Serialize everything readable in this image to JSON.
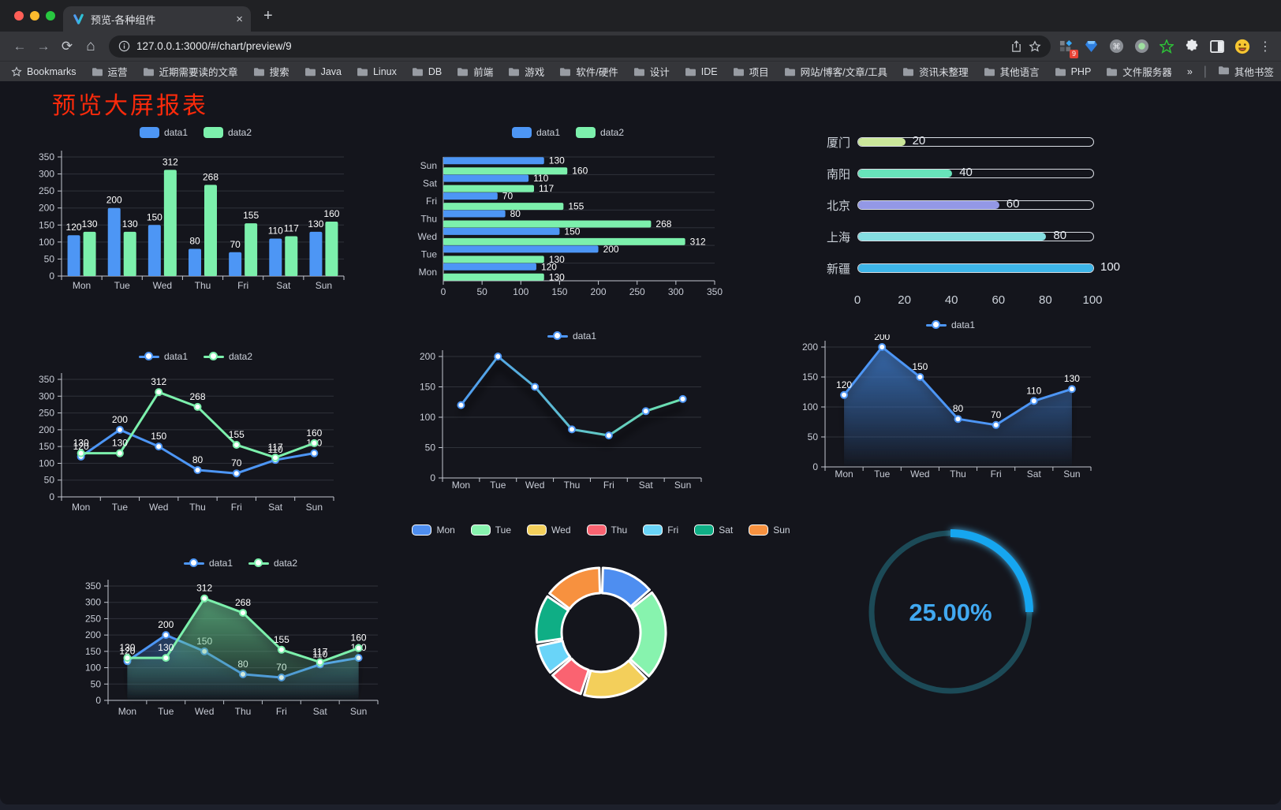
{
  "browser": {
    "traffic_lights": [
      "#ff5f57",
      "#febc2e",
      "#28c840"
    ],
    "tab": {
      "title": "预览-各种组件",
      "close_glyph": "×",
      "new_tab_glyph": "+"
    },
    "address": {
      "url": "127.0.0.1:3000/#/chart/preview/9"
    },
    "nav": {
      "back_glyph": "←",
      "forward_glyph": "→",
      "reload_glyph": "⟳",
      "home_glyph": "⌂"
    },
    "extension_badge": "9",
    "menu_glyph": "⋮",
    "bookmarks_label": "Bookmarks",
    "bookmarks": [
      "运营",
      "近期需要读的文章",
      "搜索",
      "Java",
      "Linux",
      "DB",
      "前端",
      "游戏",
      "软件/硬件",
      "设计",
      "IDE",
      "项目",
      "网站/博客/文章/工具",
      "资讯未整理",
      "其他语言",
      "PHP",
      "文件服务器"
    ],
    "bookmarks_overflow_glyph": "»",
    "other_bookmarks_label": "其他书签"
  },
  "page": {
    "title": "预览大屏报表",
    "title_color": "#fb2a0b",
    "background": "#14151c"
  },
  "theme": {
    "axis_text": "#c8ccd6",
    "axis_line": "#c3c7d0",
    "grid_line": "#2f323a",
    "value_label": "#ffffff"
  },
  "chart_data": [
    {
      "id": "grouped-bar",
      "type": "bar",
      "categories": [
        "Mon",
        "Tue",
        "Wed",
        "Thu",
        "Fri",
        "Sat",
        "Sun"
      ],
      "series": [
        {
          "name": "data1",
          "color": "#4d96f5",
          "values": [
            120,
            200,
            150,
            80,
            70,
            110,
            130
          ]
        },
        {
          "name": "data2",
          "color": "#7cf0ac",
          "values": [
            130,
            130,
            312,
            268,
            155,
            117,
            160
          ]
        }
      ],
      "ylim": [
        0,
        350
      ],
      "ystep": 50,
      "grid": true,
      "legend_position": "top",
      "labels": true
    },
    {
      "id": "horizontal-bar",
      "type": "bar-horizontal",
      "categories_top_to_bottom": [
        "Sun",
        "Sat",
        "Fri",
        "Thu",
        "Wed",
        "Tue",
        "Mon"
      ],
      "series": [
        {
          "name": "data1",
          "color": "#4d96f5",
          "values_mon_to_sun": [
            120,
            200,
            150,
            80,
            70,
            110,
            130
          ]
        },
        {
          "name": "data2",
          "color": "#7cf0ac",
          "values_mon_to_sun": [
            130,
            130,
            312,
            268,
            155,
            117,
            160
          ]
        }
      ],
      "xlim": [
        0,
        350
      ],
      "xstep": 50,
      "legend_position": "top",
      "labels": true
    },
    {
      "id": "progress-bars",
      "type": "progress",
      "items": [
        {
          "label": "厦门",
          "value": 20,
          "color": "#cbe79a"
        },
        {
          "label": "南阳",
          "value": 40,
          "color": "#67e3ba"
        },
        {
          "label": "北京",
          "value": 60,
          "color": "#9398e6"
        },
        {
          "label": "上海",
          "value": 80,
          "color": "#85dee1"
        },
        {
          "label": "新疆",
          "value": 100,
          "color": "#3db5e8"
        }
      ],
      "axis_ticks": [
        0,
        20,
        40,
        60,
        80,
        100
      ]
    },
    {
      "id": "line-two-series",
      "type": "line",
      "categories": [
        "Mon",
        "Tue",
        "Wed",
        "Thu",
        "Fri",
        "Sat",
        "Sun"
      ],
      "series": [
        {
          "name": "data1",
          "color": "#4d96f5",
          "values": [
            120,
            200,
            150,
            80,
            70,
            110,
            130
          ]
        },
        {
          "name": "data2",
          "color": "#7cf0ac",
          "values": [
            130,
            130,
            312,
            268,
            155,
            117,
            160
          ]
        }
      ],
      "ylim": [
        0,
        350
      ],
      "ystep": 50,
      "labels": true,
      "legend_position": "top"
    },
    {
      "id": "gradient-line",
      "type": "line",
      "categories": [
        "Mon",
        "Tue",
        "Wed",
        "Thu",
        "Fri",
        "Sat",
        "Sun"
      ],
      "series": [
        {
          "name": "data1",
          "color": "#4d96f5",
          "gradient_end": "#6fe9a8",
          "values": [
            120,
            200,
            150,
            80,
            70,
            110,
            130
          ]
        }
      ],
      "ylim": [
        0,
        200
      ],
      "ystep": 50,
      "labels": false,
      "legend_position": "top"
    },
    {
      "id": "area-single",
      "type": "area",
      "categories": [
        "Mon",
        "Tue",
        "Wed",
        "Thu",
        "Fri",
        "Sat",
        "Sun"
      ],
      "series": [
        {
          "name": "data1",
          "color": "#4d96f5",
          "values": [
            120,
            200,
            150,
            80,
            70,
            110,
            130
          ]
        }
      ],
      "ylim": [
        0,
        200
      ],
      "ystep": 50,
      "labels": true,
      "legend_position": "top"
    },
    {
      "id": "area-two-series",
      "type": "area",
      "categories": [
        "Mon",
        "Tue",
        "Wed",
        "Thu",
        "Fri",
        "Sat",
        "Sun"
      ],
      "series": [
        {
          "name": "data1",
          "color": "#4d96f5",
          "values": [
            120,
            200,
            150,
            80,
            70,
            110,
            130
          ]
        },
        {
          "name": "data2",
          "color": "#7cf0ac",
          "values": [
            130,
            130,
            312,
            268,
            155,
            117,
            160
          ]
        }
      ],
      "ylim": [
        0,
        350
      ],
      "ystep": 50,
      "labels": true,
      "legend_position": "top"
    },
    {
      "id": "donut",
      "type": "pie",
      "categories": [
        "Mon",
        "Tue",
        "Wed",
        "Thu",
        "Fri",
        "Sat",
        "Sun"
      ],
      "values": [
        120,
        200,
        150,
        80,
        70,
        110,
        130
      ],
      "colors": [
        "#4e8ef0",
        "#87f3ae",
        "#f3cf5b",
        "#fa6371",
        "#69d4f8",
        "#0fae85",
        "#f7913f"
      ],
      "inner_radius": 50,
      "outer_radius": 82,
      "border_color": "#ffffff",
      "legend_position": "top"
    },
    {
      "id": "gauge",
      "type": "gauge",
      "value": 25,
      "display": "25.00%",
      "color": "#18a6f0",
      "track_color": "#1c4a57",
      "text_color": "#41a9f1"
    }
  ]
}
